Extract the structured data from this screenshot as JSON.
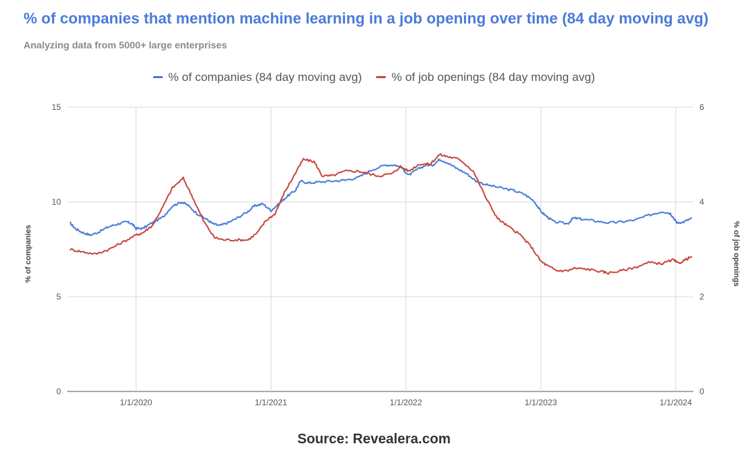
{
  "chart_data": {
    "type": "line",
    "title": "% of companies that mention machine learning in a job opening over time (84 day moving avg)",
    "subtitle": "Analyzing data from 5000+ large enterprises",
    "source": "Source: Revealera.com",
    "y_left": {
      "label": "% of companies",
      "lim": [
        0,
        15
      ],
      "ticks": [
        "0",
        "5",
        "10",
        "15"
      ]
    },
    "y_right": {
      "label": "% of job openings",
      "lim": [
        0,
        6
      ],
      "ticks": [
        "0",
        "2",
        "4",
        "6"
      ]
    },
    "x_ticks": [
      {
        "label": "1/1/2020",
        "t": 2020.0
      },
      {
        "label": "1/1/2021",
        "t": 2021.0
      },
      {
        "label": "1/1/2022",
        "t": 2022.0
      },
      {
        "label": "1/1/2023",
        "t": 2023.0
      },
      {
        "label": "1/1/2024",
        "t": 2024.0
      }
    ],
    "x_range": [
      2019.49,
      2024.13
    ],
    "grid": true,
    "legend_position": "top-center",
    "series": [
      {
        "name": "% of companies (84 day moving avg)",
        "axis": "left",
        "color": "#4a7bd8",
        "points": [
          [
            2019.51,
            8.9
          ],
          [
            2019.55,
            8.6
          ],
          [
            2019.6,
            8.4
          ],
          [
            2019.66,
            8.25
          ],
          [
            2019.72,
            8.4
          ],
          [
            2019.8,
            8.7
          ],
          [
            2019.87,
            8.85
          ],
          [
            2019.93,
            8.95
          ],
          [
            2019.97,
            8.85
          ],
          [
            2020.0,
            8.6
          ],
          [
            2020.05,
            8.6
          ],
          [
            2020.12,
            8.9
          ],
          [
            2020.2,
            9.2
          ],
          [
            2020.27,
            9.8
          ],
          [
            2020.34,
            10.0
          ],
          [
            2020.38,
            9.85
          ],
          [
            2020.45,
            9.4
          ],
          [
            2020.52,
            9.1
          ],
          [
            2020.57,
            8.85
          ],
          [
            2020.62,
            8.75
          ],
          [
            2020.68,
            8.9
          ],
          [
            2020.75,
            9.15
          ],
          [
            2020.83,
            9.5
          ],
          [
            2020.88,
            9.8
          ],
          [
            2020.94,
            9.9
          ],
          [
            2021.0,
            9.55
          ],
          [
            2021.06,
            9.9
          ],
          [
            2021.12,
            10.3
          ],
          [
            2021.18,
            10.6
          ],
          [
            2021.22,
            11.1
          ],
          [
            2021.28,
            11.0
          ],
          [
            2021.35,
            11.05
          ],
          [
            2021.45,
            11.1
          ],
          [
            2021.55,
            11.15
          ],
          [
            2021.65,
            11.3
          ],
          [
            2021.75,
            11.7
          ],
          [
            2021.85,
            11.95
          ],
          [
            2021.92,
            11.95
          ],
          [
            2021.97,
            11.8
          ],
          [
            2022.02,
            11.4
          ],
          [
            2022.08,
            11.7
          ],
          [
            2022.15,
            11.95
          ],
          [
            2022.2,
            11.95
          ],
          [
            2022.25,
            12.25
          ],
          [
            2022.3,
            12.1
          ],
          [
            2022.37,
            11.8
          ],
          [
            2022.45,
            11.5
          ],
          [
            2022.52,
            11.1
          ],
          [
            2022.6,
            10.9
          ],
          [
            2022.7,
            10.75
          ],
          [
            2022.8,
            10.6
          ],
          [
            2022.88,
            10.4
          ],
          [
            2022.95,
            10.05
          ],
          [
            2023.0,
            9.5
          ],
          [
            2023.05,
            9.2
          ],
          [
            2023.1,
            8.95
          ],
          [
            2023.2,
            8.85
          ],
          [
            2023.24,
            9.15
          ],
          [
            2023.3,
            9.1
          ],
          [
            2023.4,
            9.0
          ],
          [
            2023.5,
            8.9
          ],
          [
            2023.6,
            8.95
          ],
          [
            2023.7,
            9.05
          ],
          [
            2023.8,
            9.3
          ],
          [
            2023.9,
            9.5
          ],
          [
            2023.96,
            9.4
          ],
          [
            2023.99,
            9.1
          ],
          [
            2024.01,
            8.9
          ],
          [
            2024.06,
            8.95
          ],
          [
            2024.12,
            9.15
          ]
        ]
      },
      {
        "name": "% of job openings (84 day moving avg)",
        "axis": "right",
        "color": "#c8473d",
        "points": [
          [
            2019.51,
            3.0
          ],
          [
            2019.6,
            2.95
          ],
          [
            2019.7,
            2.9
          ],
          [
            2019.8,
            3.0
          ],
          [
            2019.9,
            3.15
          ],
          [
            2020.0,
            3.3
          ],
          [
            2020.05,
            3.35
          ],
          [
            2020.12,
            3.5
          ],
          [
            2020.2,
            3.9
          ],
          [
            2020.27,
            4.3
          ],
          [
            2020.35,
            4.5
          ],
          [
            2020.42,
            4.1
          ],
          [
            2020.5,
            3.6
          ],
          [
            2020.58,
            3.25
          ],
          [
            2020.65,
            3.2
          ],
          [
            2020.75,
            3.2
          ],
          [
            2020.83,
            3.2
          ],
          [
            2020.9,
            3.35
          ],
          [
            2020.96,
            3.6
          ],
          [
            2021.03,
            3.75
          ],
          [
            2021.1,
            4.2
          ],
          [
            2021.17,
            4.55
          ],
          [
            2021.24,
            4.9
          ],
          [
            2021.32,
            4.85
          ],
          [
            2021.38,
            4.55
          ],
          [
            2021.45,
            4.55
          ],
          [
            2021.55,
            4.65
          ],
          [
            2021.65,
            4.65
          ],
          [
            2021.72,
            4.6
          ],
          [
            2021.8,
            4.55
          ],
          [
            2021.9,
            4.6
          ],
          [
            2021.96,
            4.75
          ],
          [
            2022.02,
            4.65
          ],
          [
            2022.1,
            4.8
          ],
          [
            2022.18,
            4.8
          ],
          [
            2022.25,
            5.0
          ],
          [
            2022.32,
            4.95
          ],
          [
            2022.4,
            4.9
          ],
          [
            2022.5,
            4.65
          ],
          [
            2022.6,
            4.05
          ],
          [
            2022.68,
            3.65
          ],
          [
            2022.75,
            3.5
          ],
          [
            2022.85,
            3.3
          ],
          [
            2022.93,
            3.05
          ],
          [
            2023.0,
            2.75
          ],
          [
            2023.05,
            2.65
          ],
          [
            2023.12,
            2.55
          ],
          [
            2023.2,
            2.55
          ],
          [
            2023.25,
            2.6
          ],
          [
            2023.35,
            2.58
          ],
          [
            2023.45,
            2.53
          ],
          [
            2023.5,
            2.5
          ],
          [
            2023.6,
            2.55
          ],
          [
            2023.7,
            2.62
          ],
          [
            2023.8,
            2.72
          ],
          [
            2023.9,
            2.7
          ],
          [
            2023.98,
            2.78
          ],
          [
            2024.02,
            2.7
          ],
          [
            2024.07,
            2.78
          ],
          [
            2024.12,
            2.85
          ]
        ]
      }
    ]
  }
}
